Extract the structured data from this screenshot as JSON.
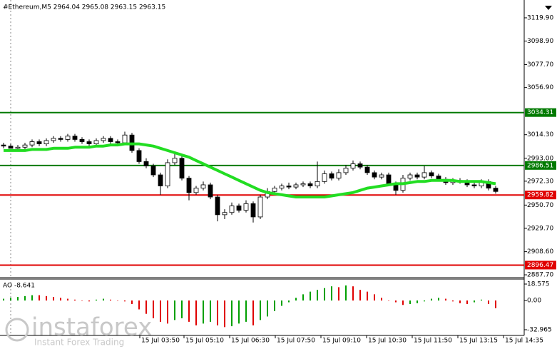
{
  "chart_data": {
    "type": "candlestick",
    "title": "#Ethereum,M5  2964.04 2965.08 2963.15 2963.15",
    "xlim": [
      -0.5,
      73
    ],
    "ylim": [
      2885.8,
      3136.0
    ],
    "yticks": [
      {
        "value": 3119.9,
        "label": "3119.90"
      },
      {
        "value": 3098.9,
        "label": "3098.90"
      },
      {
        "value": 3077.7,
        "label": "3077.70"
      },
      {
        "value": 3056.9,
        "label": "3056.90"
      },
      {
        "value": 3014.3,
        "label": "3014.30"
      },
      {
        "value": 2993,
        "label": "2993.00"
      },
      {
        "value": 2972.3,
        "label": "2972.30"
      },
      {
        "value": 2950.7,
        "label": "2950.70"
      },
      {
        "value": 2929.7,
        "label": "2929.70"
      },
      {
        "value": 2908.6,
        "label": "2908.60"
      },
      {
        "value": 2887.7,
        "label": "2887.70"
      }
    ],
    "xticks": [
      {
        "value": 19.1,
        "label": "15 Jul 03:50"
      },
      {
        "value": 25.3,
        "label": "15 Jul 05:10"
      },
      {
        "value": 31.7,
        "label": "15 Jul 06:30"
      },
      {
        "value": 38.1,
        "label": "15 Jul 07:50"
      },
      {
        "value": 44.5,
        "label": "15 Jul 09:10"
      },
      {
        "value": 50.9,
        "label": "15 Jul 10:30"
      },
      {
        "value": 57.3,
        "label": "15 Jul 11:50"
      },
      {
        "value": 63.7,
        "label": "15 Jul 13:15"
      },
      {
        "value": 70.1,
        "label": "15 Jul 14:35"
      }
    ],
    "open": [
      3005,
      3004,
      3002,
      3003,
      3005,
      3008,
      3006,
      3009,
      3011,
      3010,
      3013,
      3010,
      3008,
      3006,
      3009,
      3011,
      3008,
      3007,
      3014,
      3000,
      2990,
      2986,
      2978,
      2968,
      2989,
      2993,
      2975,
      2962,
      2966,
      2969,
      2958,
      2942,
      2944,
      2950,
      2946,
      2952,
      2940,
      2958,
      2963,
      2966,
      2968,
      2967,
      2969,
      2970,
      2968,
      2972,
      2979,
      2975,
      2980,
      2984,
      2988,
      2985,
      2980,
      2976,
      2978,
      2970,
      2964,
      2975,
      2978,
      2976,
      2980,
      2977,
      2974,
      2971,
      2973,
      2972,
      2969,
      2968,
      2972,
      2966
    ],
    "high": [
      3007,
      3006,
      3005,
      3007,
      3010,
      3010,
      3011,
      3013,
      3013,
      3015,
      3015,
      3012,
      3010,
      3011,
      3013,
      3013,
      3010,
      3017,
      3016,
      3002,
      2993,
      2988,
      2980,
      2992,
      2997,
      2995,
      2977,
      2968,
      2972,
      2971,
      2960,
      2947,
      2953,
      2952,
      2955,
      2954,
      2960,
      2966,
      2968,
      2970,
      2971,
      2971,
      2972,
      2972,
      2990,
      2982,
      2981,
      2983,
      2987,
      2991,
      2990,
      2987,
      2982,
      2980,
      2980,
      2972,
      2978,
      2980,
      2980,
      2986,
      2982,
      2979,
      2976,
      2975,
      2975,
      2974,
      2971,
      2974,
      2974,
      2968
    ],
    "low": [
      3002,
      3002,
      3000,
      3001,
      3003,
      3004,
      3004,
      3007,
      3008,
      3008,
      3008,
      3006,
      3004,
      3004,
      3007,
      3006,
      3005,
      3005,
      2998,
      2988,
      2984,
      2976,
      2960,
      2966,
      2987,
      2973,
      2955,
      2960,
      2964,
      2956,
      2936,
      2938,
      2942,
      2944,
      2944,
      2935,
      2938,
      2956,
      2961,
      2964,
      2965,
      2965,
      2967,
      2966,
      2966,
      2970,
      2973,
      2973,
      2978,
      2982,
      2983,
      2978,
      2974,
      2974,
      2968,
      2960,
      2962,
      2973,
      2974,
      2974,
      2975,
      2972,
      2969,
      2969,
      2970,
      2967,
      2966,
      2966,
      2964,
      2961
    ],
    "close": [
      3004,
      3002,
      3003,
      3005,
      3008,
      3006,
      3009,
      3011,
      3010,
      3013,
      3010,
      3008,
      3006,
      3009,
      3011,
      3008,
      3007,
      3014,
      3000,
      2990,
      2986,
      2978,
      2968,
      2989,
      2993,
      2975,
      2962,
      2966,
      2969,
      2958,
      2942,
      2944,
      2950,
      2946,
      2952,
      2940,
      2958,
      2963,
      2966,
      2968,
      2967,
      2969,
      2970,
      2968,
      2972,
      2979,
      2975,
      2980,
      2984,
      2988,
      2985,
      2980,
      2976,
      2978,
      2970,
      2964,
      2975,
      2978,
      2976,
      2980,
      2977,
      2974,
      2971,
      2973,
      2972,
      2969,
      2968,
      2972,
      2966,
      2963
    ],
    "ma": {
      "color": "#22dd22",
      "values": [
        3000,
        3000,
        3000,
        3000,
        3001,
        3001,
        3001,
        3002,
        3002,
        3002,
        3003,
        3003,
        3003,
        3004,
        3004,
        3005,
        3005,
        3006,
        3006,
        3006,
        3005,
        3004,
        3002,
        3000,
        2998,
        2996,
        2994,
        2991,
        2988,
        2985,
        2982,
        2979,
        2976,
        2973,
        2970,
        2967,
        2964,
        2962,
        2961,
        2960,
        2959,
        2958,
        2958,
        2958,
        2958,
        2958,
        2959,
        2960,
        2961,
        2962,
        2964,
        2966,
        2967,
        2968,
        2969,
        2970,
        2970,
        2971,
        2972,
        2972,
        2973,
        2973,
        2973,
        2973,
        2972,
        2972,
        2972,
        2972,
        2971,
        2970
      ]
    },
    "levels": [
      {
        "value": 3034.31,
        "color": "#007a00"
      },
      {
        "value": 2986.51,
        "color": "#007a00"
      },
      {
        "value": 2959.82,
        "color": "#e00000"
      },
      {
        "value": 2896.47,
        "color": "#e00000"
      }
    ],
    "ao": {
      "label": "AO -8.641",
      "ylim": [
        -39.4,
        23.4
      ],
      "yticks": [
        18.575,
        {
          "value": 0,
          "label": "0.00"
        },
        -32.965
      ],
      "up_color": "#00a000",
      "down_color": "#e00000",
      "values": [
        2,
        3,
        4,
        5,
        6,
        6,
        5,
        4,
        3,
        2,
        1,
        0,
        -1,
        1,
        2,
        1,
        0,
        -1,
        -4,
        -10,
        -15,
        -20,
        -24,
        -26,
        -22,
        -20,
        -24,
        -28,
        -26,
        -24,
        -28,
        -30,
        -29,
        -26,
        -24,
        -28,
        -22,
        -18,
        -12,
        -6,
        -2,
        3,
        7,
        10,
        12,
        14,
        16,
        15,
        17,
        16,
        12,
        10,
        7,
        3,
        0,
        -2,
        -5,
        -4,
        -3,
        -1,
        2,
        3,
        2,
        -1,
        -3,
        -4,
        -2,
        1,
        -4,
        -8.641
      ]
    }
  },
  "watermark": {
    "brand": "instaforex",
    "slogan": "Instant Forex Trading"
  }
}
